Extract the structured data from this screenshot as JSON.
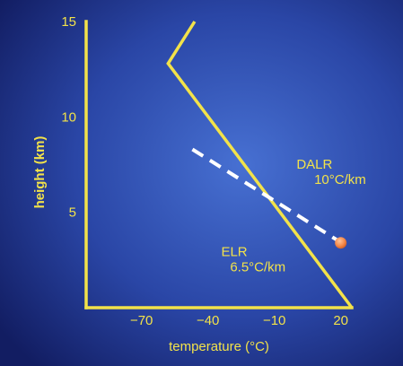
{
  "chart_data": {
    "type": "line",
    "xlabel": "temperature (°C)",
    "ylabel": "height (km)",
    "xlim": [
      -95,
      25
    ],
    "ylim": [
      0,
      15
    ],
    "x_ticks": [
      {
        "value": -70,
        "label": "−70"
      },
      {
        "value": -40,
        "label": "−40"
      },
      {
        "value": -10,
        "label": "−10"
      },
      {
        "value": 20,
        "label": "20"
      }
    ],
    "y_ticks": [
      {
        "value": 5,
        "label": "5"
      },
      {
        "value": 10,
        "label": "10"
      },
      {
        "value": 15,
        "label": "15"
      }
    ],
    "series": [
      {
        "style": "solid",
        "color": "#f2e24a",
        "points": [
          {
            "x": 25,
            "y": 0
          },
          {
            "x": -58,
            "y": 12.8
          },
          {
            "x": -46,
            "y": 15
          }
        ]
      },
      {
        "style": "dashed",
        "color": "#ffffff",
        "points": [
          {
            "x": -47,
            "y": 8.3
          },
          {
            "x": 19,
            "y": 3.5
          }
        ]
      }
    ],
    "parcel": {
      "x": 20,
      "y": 3.4,
      "color": "#f5894a"
    },
    "annotations": [
      {
        "id": "dalr-name",
        "text": "DALR",
        "x": 0,
        "y": 7.3
      },
      {
        "id": "dalr-rate",
        "text": "10°C/km",
        "x": 8,
        "y": 6.5
      },
      {
        "id": "elr-name",
        "text": "ELR",
        "x": -34,
        "y": 2.7
      },
      {
        "id": "elr-rate",
        "text": "6.5°C/km",
        "x": -30,
        "y": 1.9
      }
    ]
  }
}
